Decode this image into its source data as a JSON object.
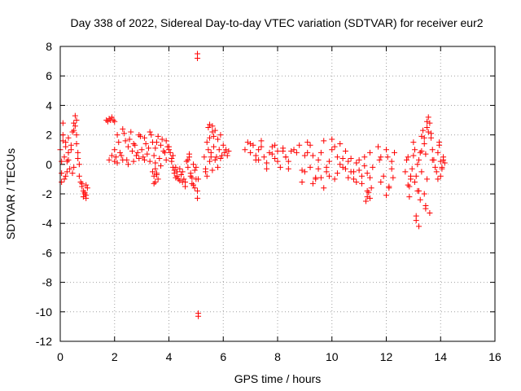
{
  "chart_data": {
    "type": "scatter",
    "title": "Day 338 of 2022, Sidereal Day-to-day VTEC variation (SDTVAR) for receiver eur2",
    "xlabel": "GPS time / hours",
    "ylabel": "SDTVAR / TECUs",
    "xlim": [
      0,
      16
    ],
    "ylim": [
      -12,
      8
    ],
    "xticks": [
      0,
      2,
      4,
      6,
      8,
      10,
      12,
      14,
      16
    ],
    "yticks": [
      -12,
      -10,
      -8,
      -6,
      -4,
      -2,
      0,
      2,
      4,
      6,
      8
    ],
    "xtick_labels": [
      "0",
      "2",
      "4",
      "6",
      "8",
      "10",
      "12",
      "14",
      "16"
    ],
    "ytick_labels": [
      "-12",
      "-10",
      "-8",
      "-6",
      "-4",
      "-2",
      "0",
      "2",
      "4",
      "6",
      "8"
    ],
    "grid": true,
    "marker": "+",
    "marker_color": "#ff0000",
    "series": [
      {
        "name": "SDTVAR",
        "x": [
          0.0,
          0.05,
          0.1,
          0.15,
          0.2,
          0.25,
          0.3,
          0.35,
          0.4,
          0.45,
          0.5,
          0.55,
          0.6,
          0.65,
          0.7,
          0.75,
          0.8,
          0.85,
          0.9,
          0.95,
          1.0,
          0.05,
          0.1,
          0.15,
          0.2,
          0.3,
          0.4,
          0.5,
          0.55,
          0.6,
          0.7,
          0.8,
          0.9,
          0.95,
          0.1,
          0.2,
          0.3,
          0.45,
          0.6,
          0.85,
          0.95,
          0.05,
          0.25,
          0.5,
          0.65,
          1.7,
          1.75,
          1.8,
          1.85,
          1.9,
          1.95,
          2.0,
          1.8,
          1.9,
          2.0,
          2.0,
          2.1,
          2.2,
          2.3,
          2.4,
          2.5,
          2.6,
          2.7,
          2.8,
          2.9,
          3.0,
          3.1,
          3.2,
          3.3,
          3.4,
          3.5,
          3.6,
          3.7,
          3.8,
          3.9,
          4.0,
          2.05,
          2.15,
          2.25,
          2.35,
          2.45,
          2.55,
          2.65,
          2.75,
          2.85,
          2.95,
          3.05,
          3.15,
          3.25,
          3.35,
          3.45,
          3.55,
          3.65,
          3.75,
          3.85,
          3.95,
          2.1,
          2.3,
          2.5,
          2.7,
          2.9,
          3.1,
          3.3,
          3.5,
          3.7,
          3.9,
          3.4,
          3.45,
          3.5,
          3.55,
          3.6,
          3.5,
          3.55,
          3.45,
          4.0,
          4.05,
          4.1,
          4.15,
          4.2,
          4.25,
          4.3,
          4.35,
          4.4,
          4.45,
          4.5,
          4.1,
          4.2,
          4.3,
          4.4,
          4.15,
          4.25,
          4.5,
          4.55,
          4.6,
          4.65,
          4.7,
          4.75,
          4.8,
          4.85,
          4.9,
          4.95,
          5.0,
          5.05,
          4.6,
          4.7,
          4.8,
          4.9,
          5.0,
          4.75,
          4.85,
          4.95,
          5.05,
          5.05,
          5.08,
          5.08,
          5.05,
          5.08,
          5.3,
          5.35,
          5.4,
          5.45,
          5.5,
          5.55,
          5.6,
          5.65,
          5.7,
          5.75,
          5.8,
          5.85,
          5.9,
          5.95,
          6.0,
          6.05,
          6.1,
          6.15,
          6.2,
          5.4,
          5.5,
          5.6,
          5.7,
          5.8,
          5.9,
          5.45,
          5.55,
          5.65,
          5.35,
          5.5,
          5.6,
          6.8,
          6.9,
          7.0,
          7.1,
          7.2,
          7.3,
          7.4,
          7.5,
          7.6,
          7.7,
          7.8,
          7.9,
          8.0,
          8.1,
          8.2,
          8.3,
          8.4,
          8.5,
          8.6,
          7.0,
          7.2,
          7.4,
          7.6,
          7.8,
          8.0,
          8.2,
          8.4,
          7.3,
          7.9,
          8.3,
          8.7,
          8.8,
          8.9,
          9.0,
          9.1,
          9.2,
          9.3,
          9.4,
          9.5,
          9.6,
          9.7,
          9.8,
          9.9,
          10.0,
          10.1,
          10.2,
          10.3,
          10.4,
          10.5,
          8.9,
          9.1,
          9.3,
          9.5,
          9.7,
          9.9,
          10.1,
          10.3,
          9.0,
          9.4,
          9.8,
          10.2,
          9.2,
          9.6,
          10.0,
          10.4,
          10.5,
          10.6,
          10.7,
          10.8,
          10.9,
          11.0,
          11.1,
          11.2,
          11.3,
          11.4,
          11.5,
          10.6,
          10.8,
          11.0,
          11.2,
          11.4,
          10.7,
          10.9,
          11.1,
          11.3,
          11.25,
          11.3,
          11.35,
          11.4,
          11.45,
          11.7,
          11.8,
          11.9,
          12.0,
          12.1,
          12.2,
          12.3,
          11.8,
          12.0,
          12.2,
          11.75,
          12.05,
          12.25,
          12.1,
          12.7,
          12.75,
          12.8,
          12.85,
          12.9,
          12.95,
          13.0,
          13.05,
          13.1,
          13.15,
          13.2,
          13.25,
          13.3,
          13.35,
          13.4,
          13.45,
          13.5,
          13.55,
          13.6,
          13.65,
          13.7,
          13.75,
          13.8,
          12.8,
          12.9,
          13.0,
          13.1,
          13.2,
          13.3,
          13.4,
          13.5,
          13.6,
          13.7,
          12.85,
          13.05,
          13.25,
          13.45,
          13.65,
          13.1,
          13.15,
          13.2,
          13.3,
          13.4,
          13.45,
          13.5,
          13.55,
          13.85,
          13.9,
          13.95,
          14.0,
          14.05,
          14.1,
          14.15,
          13.9,
          14.0,
          14.1,
          13.95,
          14.05
        ],
        "y": [
          1.0,
          -1.2,
          2.8,
          0.5,
          1.5,
          -0.5,
          0.8,
          -0.3,
          1.3,
          2.2,
          2.8,
          3.3,
          2.0,
          0.8,
          -0.8,
          -1.2,
          -1.5,
          -1.8,
          -2.0,
          -2.3,
          -1.6,
          0.2,
          2.0,
          -1.0,
          1.2,
          0.3,
          1.0,
          -0.2,
          2.6,
          3.0,
          0.0,
          -1.3,
          -1.9,
          -2.1,
          1.6,
          -0.8,
          1.8,
          -0.6,
          1.4,
          -2.2,
          -1.4,
          -0.6,
          0.2,
          2.3,
          0.4,
          3.0,
          2.9,
          3.1,
          3.0,
          3.2,
          3.0,
          2.9,
          0.3,
          0.6,
          0.2,
          1.0,
          2.0,
          0.8,
          2.4,
          1.6,
          1.2,
          2.2,
          1.4,
          0.6,
          2.0,
          1.0,
          1.8,
          0.7,
          2.2,
          1.5,
          1.1,
          1.9,
          1.3,
          0.9,
          1.6,
          1.0,
          0.5,
          1.5,
          0.6,
          2.1,
          0.3,
          1.7,
          0.9,
          1.3,
          0.8,
          1.9,
          0.5,
          1.4,
          1.1,
          2.0,
          0.6,
          1.5,
          0.4,
          1.7,
          0.8,
          1.2,
          0.1,
          0.3,
          0.0,
          0.2,
          0.4,
          0.3,
          0.2,
          0.1,
          -0.1,
          0.3,
          -0.5,
          -0.8,
          -1.2,
          -0.6,
          -1.0,
          -0.3,
          -0.7,
          -1.3,
          1.2,
          0.8,
          0.4,
          -0.2,
          -0.6,
          -0.9,
          -0.5,
          -1.0,
          -0.3,
          -0.7,
          -1.2,
          0.2,
          -0.4,
          -0.8,
          -1.1,
          0.6,
          -0.2,
          -0.5,
          -1.0,
          -1.5,
          0.2,
          -0.2,
          0.5,
          -0.8,
          -1.3,
          0.0,
          -0.4,
          -1.0,
          -1.8,
          -1.2,
          0.3,
          -0.6,
          -1.4,
          -0.2,
          0.7,
          -0.9,
          -1.6,
          7.5,
          7.2,
          -10.1,
          -10.3,
          -2.3,
          -1.0,
          0.5,
          -0.5,
          1.5,
          2.5,
          1.8,
          0.8,
          2.6,
          1.2,
          2.3,
          0.5,
          1.7,
          1.0,
          2.0,
          0.6,
          1.3,
          0.8,
          1.0,
          0.6,
          0.9,
          -0.8,
          0.2,
          -0.4,
          0.3,
          -0.2,
          0.4,
          1.0,
          0.5,
          1.9,
          -0.3,
          2.7,
          2.2,
          1.0,
          1.5,
          0.8,
          1.3,
          0.3,
          1.0,
          1.6,
          0.5,
          -0.3,
          0.8,
          1.2,
          0.4,
          0.9,
          -0.2,
          1.1,
          0.5,
          0.2,
          0.9,
          1.0,
          1.4,
          0.6,
          1.2,
          0.1,
          0.7,
          0.2,
          0.9,
          -0.3,
          0.3,
          1.3,
          0.5,
          0.8,
          1.3,
          -1.2,
          -0.5,
          1.5,
          -0.2,
          0.6,
          -0.9,
          -0.3,
          0.8,
          1.6,
          -0.5,
          0.2,
          1.7,
          -1.0,
          0.5,
          1.4,
          -0.2,
          0.9,
          -0.4,
          0.8,
          -1.3,
          0.3,
          -1.6,
          -0.8,
          1.2,
          0.0,
          0.6,
          -1.0,
          -0.2,
          -0.6,
          1.3,
          -0.9,
          1.0,
          0.4,
          -0.3,
          -0.9,
          0.4,
          -0.5,
          -1.2,
          0.3,
          -0.8,
          -0.1,
          -0.6,
          0.8,
          -0.2,
          0.2,
          -1.0,
          -0.4,
          0.5,
          -0.9,
          -0.5,
          0.1,
          -1.3,
          -1.8,
          -2.5,
          -2.2,
          -1.9,
          -2.3,
          -1.6,
          1.2,
          0.5,
          -0.8,
          1.0,
          -1.5,
          -0.3,
          0.8,
          -1.2,
          -2.1,
          0.2,
          0.3,
          0.5,
          -0.9,
          -1.6,
          -0.5,
          0.3,
          -1.4,
          -2.2,
          -0.8,
          -0.3,
          0.6,
          1.0,
          -0.8,
          -1.8,
          0.3,
          0.8,
          1.9,
          2.3,
          1.4,
          0.7,
          2.9,
          3.2,
          2.8,
          1.8,
          1.0,
          0.3,
          -0.2,
          0.5,
          -1.0,
          1.5,
          -3.8,
          -4.2,
          -0.5,
          -2.0,
          2.5,
          -3.3,
          0.3,
          -1.5,
          -1.2,
          -2.4,
          -3.0,
          2.1,
          -3.5,
          0.0,
          -1.8,
          0.9,
          1.8,
          -2.8,
          -1.0,
          2.2,
          -0.5,
          0.8,
          1.3,
          0.2,
          -0.3,
          0.5,
          0.1,
          -1.0,
          -0.8,
          0.3,
          1.5,
          -0.2
        ]
      }
    ]
  }
}
